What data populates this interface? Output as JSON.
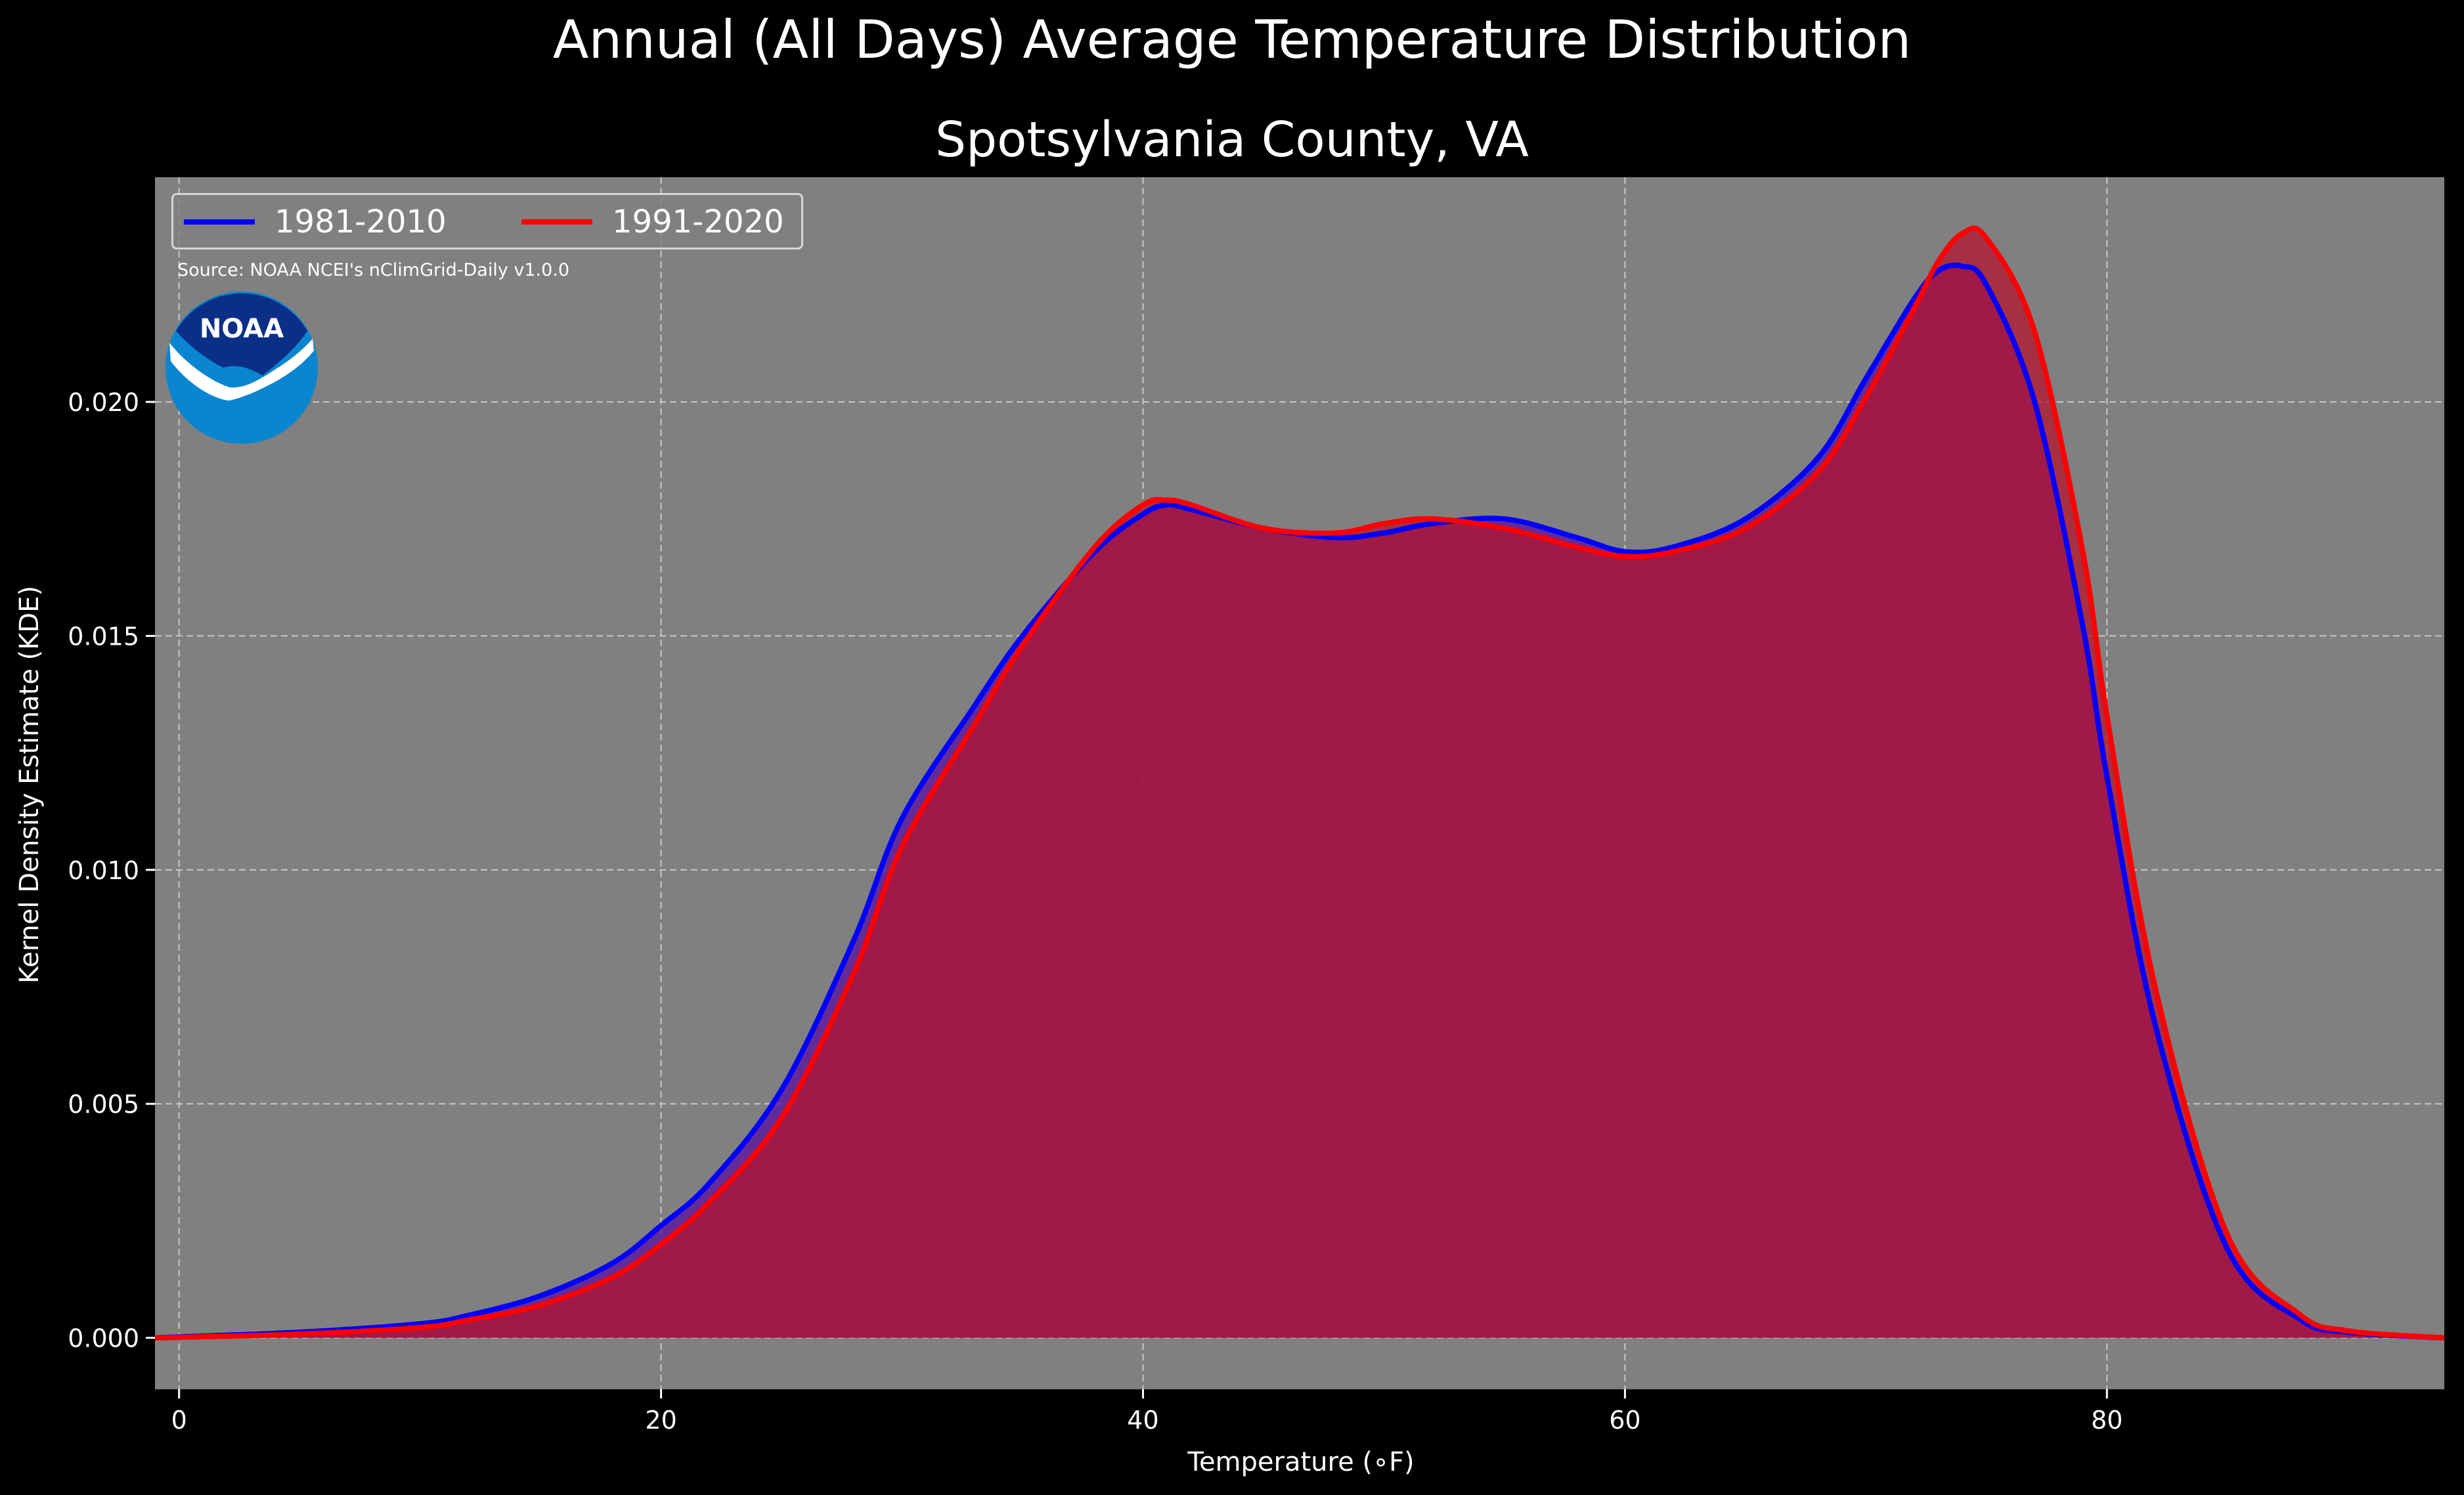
{
  "page": {
    "suptitle": "Annual (All Days) Average Temperature Distribution"
  },
  "chart_data": {
    "type": "area",
    "title": "Spotsylvania County, VA",
    "xlabel": "Temperature (∘F)",
    "ylabel": "Kernel Density Estimate (KDE)",
    "xlim": [
      -1,
      94
    ],
    "ylim": [
      -0.0011,
      0.0248
    ],
    "x_ticks": [
      0,
      20,
      40,
      60,
      80
    ],
    "y_ticks": [
      0.0,
      0.005,
      0.01,
      0.015,
      0.02
    ],
    "x_tick_labels": [
      "0",
      "20",
      "40",
      "60",
      "80"
    ],
    "y_tick_labels": [
      "0.000",
      "0.005",
      "0.010",
      "0.015",
      "0.020"
    ],
    "grid": true,
    "legend_position": "top-left",
    "annotation": "Source: NOAA NCEI's nClimGrid-Daily v1.0.0",
    "logo_text": "NOAA",
    "background_color": "#808080",
    "x": [
      -1,
      0,
      5,
      10,
      12,
      15,
      18,
      20,
      22,
      25,
      28,
      30,
      33,
      35,
      38,
      40,
      41,
      42,
      45,
      48,
      50,
      52,
      55,
      58,
      60,
      62,
      65,
      68,
      70,
      72,
      73,
      74,
      75,
      77,
      79,
      80,
      82,
      85,
      88,
      90,
      94
    ],
    "series": [
      {
        "name": "1981-2010",
        "color": "#0000ff",
        "fill": "#5a0fa0",
        "values": [
          0.0,
          2e-05,
          0.00012,
          0.0003,
          0.00048,
          0.0009,
          0.0016,
          0.0024,
          0.0033,
          0.0053,
          0.0085,
          0.0111,
          0.0135,
          0.015,
          0.0168,
          0.0176,
          0.0178,
          0.0177,
          0.0173,
          0.0171,
          0.0172,
          0.0174,
          0.0175,
          0.0171,
          0.0168,
          0.0169,
          0.0175,
          0.0188,
          0.0205,
          0.0222,
          0.0228,
          0.0229,
          0.0225,
          0.02,
          0.0152,
          0.012,
          0.0067,
          0.0019,
          0.0004,
          0.00012,
          0.0
        ]
      },
      {
        "name": "1991-2020",
        "color": "#ff0000",
        "fill": "#b4142e",
        "values": [
          0.0,
          1e-05,
          8e-05,
          0.00022,
          0.00038,
          0.0007,
          0.0013,
          0.002,
          0.0029,
          0.0047,
          0.0078,
          0.0105,
          0.0131,
          0.0148,
          0.0169,
          0.0178,
          0.0179,
          0.0178,
          0.0173,
          0.0172,
          0.0174,
          0.0175,
          0.0173,
          0.0169,
          0.0167,
          0.0168,
          0.0173,
          0.0185,
          0.0201,
          0.022,
          0.023,
          0.0236,
          0.0235,
          0.0215,
          0.0168,
          0.0133,
          0.0075,
          0.0022,
          0.0005,
          0.00015,
          0.0
        ]
      }
    ]
  }
}
